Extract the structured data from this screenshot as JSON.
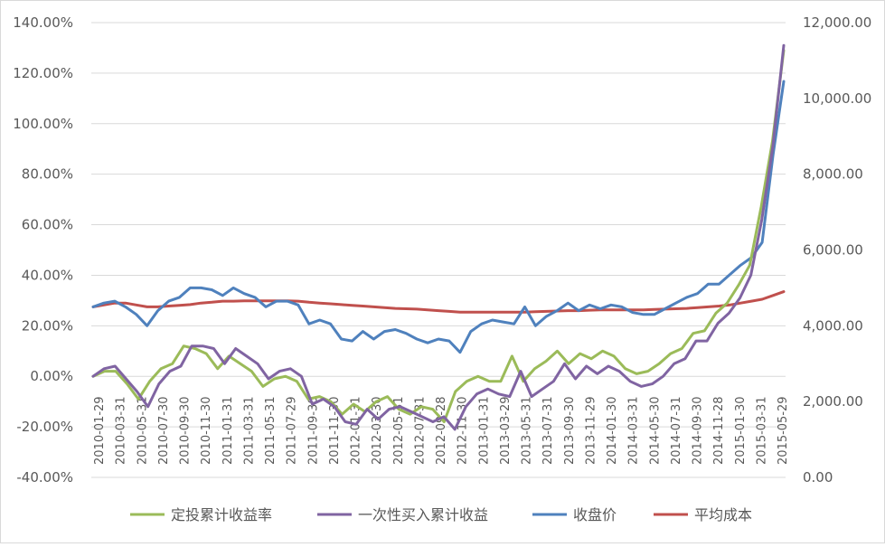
{
  "chart_data": {
    "type": "line",
    "title": "",
    "x_tick_labels": [
      "2010-01-29",
      "2010-03-31",
      "2010-05-31",
      "2010-07-30",
      "2010-09-30",
      "2010-11-30",
      "2011-01-31",
      "2011-03-31",
      "2011-05-31",
      "2011-07-29",
      "2011-09-30",
      "2011-11-30",
      "2012-01-31",
      "2012-03-30",
      "2012-05-31",
      "2012-07-31",
      "2012-09-28",
      "2012-11-30",
      "2013-01-31",
      "2013-03-29",
      "2013-05-31",
      "2013-07-31",
      "2013-09-30",
      "2013-11-29",
      "2014-01-30",
      "2014-03-31",
      "2014-05-30",
      "2014-07-31",
      "2014-09-30",
      "2014-11-28",
      "2015-01-30",
      "2015-03-31",
      "2015-05-29"
    ],
    "y_left": {
      "min": -40,
      "max": 140,
      "step": 20,
      "tick_labels": [
        "140.00%",
        "120.00%",
        "100.00%",
        "80.00%",
        "60.00%",
        "40.00%",
        "20.00%",
        "0.00%",
        "-20.00%",
        "-40.00%"
      ]
    },
    "y_right": {
      "min": 0,
      "max": 12000,
      "step": 2000,
      "tick_labels": [
        "12,000.00",
        "10,000.00",
        "8,000.00",
        "6,000.00",
        "4,000.00",
        "2,000.00",
        "0.00"
      ]
    },
    "grid": "horizontal",
    "legend_position": "bottom",
    "series": [
      {
        "name": "定投累计收益率",
        "axis": "left",
        "color": "#9BBB59",
        "values": [
          0,
          2,
          2,
          -3,
          -9,
          -2,
          3,
          5,
          12,
          11,
          9,
          3,
          8,
          5,
          2,
          -4,
          -1,
          0,
          -2,
          -9,
          -8,
          -10,
          -15,
          -11,
          -14,
          -10,
          -8,
          -13,
          -15,
          -12,
          -13,
          -18,
          -6,
          -2,
          0,
          -2,
          -2,
          8,
          -2,
          3,
          6,
          10,
          5,
          9,
          7,
          10,
          8,
          3,
          1,
          2,
          5,
          9,
          11,
          17,
          18,
          25,
          29,
          36,
          44,
          67,
          93,
          129
        ]
      },
      {
        "name": "一次性买入累计收益",
        "axis": "left",
        "color": "#8064A2",
        "values": [
          0,
          3,
          4,
          -1,
          -6,
          -12,
          -3,
          2,
          4,
          12,
          12,
          11,
          5,
          11,
          8,
          5,
          -1,
          2,
          3,
          0,
          -11,
          -9,
          -12,
          -18,
          -19,
          -13,
          -17,
          -13,
          -12,
          -14,
          -16,
          -18,
          -16,
          -21,
          -12,
          -7,
          -5,
          -7,
          -8,
          2,
          -8,
          -5,
          -2,
          5,
          -1,
          4,
          1,
          4,
          2,
          -2,
          -4,
          -3,
          0,
          5,
          7,
          14,
          14,
          21,
          25,
          31,
          40,
          62,
          91,
          131
        ]
      },
      {
        "name": "收盘价",
        "axis": "right",
        "color": "#4F81BD",
        "values": [
          4500,
          4600,
          4650,
          4500,
          4300,
          4000,
          4400,
          4650,
          4750,
          5000,
          5000,
          4950,
          4800,
          5000,
          4850,
          4750,
          4500,
          4650,
          4650,
          4550,
          4050,
          4150,
          4050,
          3650,
          3600,
          3850,
          3650,
          3850,
          3900,
          3800,
          3650,
          3550,
          3650,
          3600,
          3300,
          3850,
          4050,
          4150,
          4100,
          4050,
          4500,
          4000,
          4250,
          4400,
          4600,
          4400,
          4550,
          4450,
          4550,
          4500,
          4350,
          4300,
          4300,
          4450,
          4600,
          4750,
          4850,
          5100,
          5100,
          5350,
          5600,
          5800,
          6200,
          8500,
          10450
        ]
      },
      {
        "name": "平均成本",
        "axis": "right",
        "color": "#C0504D",
        "values": [
          4500,
          4550,
          4600,
          4600,
          4550,
          4500,
          4500,
          4520,
          4540,
          4560,
          4600,
          4620,
          4650,
          4650,
          4660,
          4660,
          4660,
          4660,
          4660,
          4650,
          4620,
          4600,
          4580,
          4560,
          4540,
          4520,
          4500,
          4480,
          4460,
          4450,
          4440,
          4420,
          4400,
          4380,
          4360,
          4360,
          4360,
          4360,
          4360,
          4360,
          4360,
          4370,
          4380,
          4390,
          4400,
          4400,
          4410,
          4420,
          4420,
          4420,
          4420,
          4420,
          4430,
          4440,
          4450,
          4460,
          4480,
          4500,
          4520,
          4550,
          4600,
          4650,
          4700,
          4800,
          4900
        ]
      }
    ]
  }
}
